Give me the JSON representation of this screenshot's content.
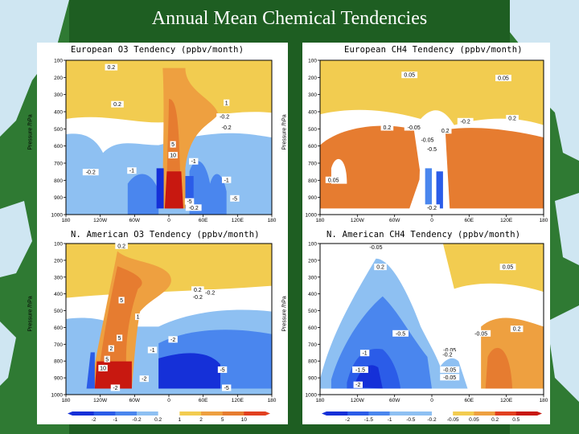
{
  "slide": {
    "title": "Annual Mean Chemical Tendencies"
  },
  "colors": {
    "background": "#1e5e22",
    "sea": "#cfe6f2",
    "land": "#2f7a33",
    "contour_bins": [
      "#1530d8",
      "#2b5ce8",
      "#4a86ee",
      "#8ec0f2",
      "#ffffff",
      "#f2cc50",
      "#eea040",
      "#e67c30",
      "#e24020",
      "#c81810"
    ]
  },
  "chart_data": [
    {
      "type": "heatmap",
      "title": "European O3 Tendency (ppbv/month)",
      "xlabel": "",
      "ylabel": "Pressure /hPa",
      "x_ticks": [
        "180",
        "120W",
        "60W",
        "0",
        "60E",
        "120E",
        "180"
      ],
      "y_ticks": [
        "100",
        "200",
        "300",
        "400",
        "500",
        "600",
        "700",
        "800",
        "900",
        "1000"
      ],
      "xlim": [
        -180,
        180
      ],
      "ylim": [
        1000,
        100
      ],
      "contour_labels": [
        "0.2",
        "1",
        "0.2",
        "-0.2",
        "-0.2",
        "-1",
        "5",
        "10",
        "-0.2",
        "-1",
        "-1",
        "-5",
        "-5",
        "-0.2"
      ]
    },
    {
      "type": "heatmap",
      "title": "European CH4 Tendency (ppbv/month)",
      "xlabel": "",
      "ylabel": "Pressure /hPa",
      "x_ticks": [
        "180",
        "120W",
        "60W",
        "0",
        "60E",
        "120E",
        "180"
      ],
      "y_ticks": [
        "100",
        "200",
        "300",
        "400",
        "500",
        "600",
        "700",
        "800",
        "900",
        "1000"
      ],
      "xlim": [
        -180,
        180
      ],
      "ylim": [
        1000,
        100
      ],
      "contour_labels": [
        "0.05",
        "0.05",
        "0.2",
        "0.2",
        "0.2",
        "-0.05",
        "-0.5",
        "-0.05",
        "0.05",
        "-0.2",
        "-0.2"
      ]
    },
    {
      "type": "heatmap",
      "title": "N. American O3 Tendency (ppbv/month)",
      "xlabel": "",
      "ylabel": "Pressure /hPa",
      "x_ticks": [
        "180",
        "120W",
        "60W",
        "0",
        "60E",
        "120E",
        "180"
      ],
      "y_ticks": [
        "100",
        "200",
        "300",
        "400",
        "500",
        "600",
        "700",
        "800",
        "900",
        "1000"
      ],
      "xlim": [
        -180,
        180
      ],
      "ylim": [
        1000,
        100
      ],
      "contour_labels": [
        "0.2",
        "5",
        "-0.2",
        "0.2",
        "-0.2",
        "5",
        "1",
        "2",
        "5",
        "-2",
        "-1",
        "10",
        "-5",
        "-5",
        "-2",
        "-2"
      ],
      "colorbar": {
        "ticks": [
          "-2",
          "-1",
          "-0.2",
          "0.2",
          "1",
          "2",
          "5",
          "10"
        ]
      }
    },
    {
      "type": "heatmap",
      "title": "N. American CH4 Tendency (ppbv/month)",
      "xlabel": "",
      "ylabel": "Pressure /hPa",
      "x_ticks": [
        "180",
        "120W",
        "60W",
        "0",
        "60E",
        "120E",
        "180"
      ],
      "y_ticks": [
        "100",
        "200",
        "300",
        "400",
        "500",
        "600",
        "700",
        "800",
        "900",
        "1000"
      ],
      "xlim": [
        -180,
        180
      ],
      "ylim": [
        1000,
        100
      ],
      "contour_labels": [
        "-0.05",
        "0.2",
        "0.05",
        "-0.5",
        "-0.05",
        "-0.2",
        "-1",
        "-0.05",
        "-0.05",
        "-1.5",
        "-0.05",
        "-2",
        "0.2"
      ],
      "colorbar": {
        "ticks": [
          "-2",
          "-1.5",
          "-1",
          "-0.5",
          "-0.2",
          "-0.05",
          "0.05",
          "0.2",
          "0.5"
        ]
      }
    }
  ]
}
